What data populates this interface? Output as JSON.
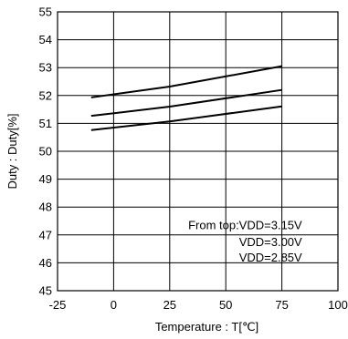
{
  "chart_data": {
    "type": "line",
    "title": "",
    "xlabel": "Temperature : T[℃]",
    "ylabel": "Duty : Duty[%]",
    "xlim": [
      -25,
      100
    ],
    "ylim": [
      45,
      55
    ],
    "x_ticks": [
      -25,
      0,
      25,
      50,
      75,
      100
    ],
    "y_ticks": [
      45,
      46,
      47,
      48,
      49,
      50,
      51,
      52,
      53,
      54,
      55
    ],
    "x_tick_labels": [
      "-25",
      "0",
      "25",
      "50",
      "75",
      "100"
    ],
    "y_tick_labels": [
      "45",
      "46",
      "47",
      "48",
      "49",
      "50",
      "51",
      "52",
      "53",
      "54",
      "55"
    ],
    "grid": true,
    "line_color": "#000000",
    "series": [
      {
        "x": [
          -10,
          25,
          75
        ],
        "values": [
          51.93,
          52.32,
          53.05
        ]
      },
      {
        "x": [
          -10,
          25,
          75
        ],
        "values": [
          51.27,
          51.6,
          52.2
        ]
      },
      {
        "x": [
          -10,
          25,
          75
        ],
        "values": [
          50.76,
          51.07,
          51.61
        ]
      }
    ],
    "annotations": [
      "From top:VDD=3.15V",
      "VDD=3.00V",
      "VDD=2.85V"
    ]
  }
}
